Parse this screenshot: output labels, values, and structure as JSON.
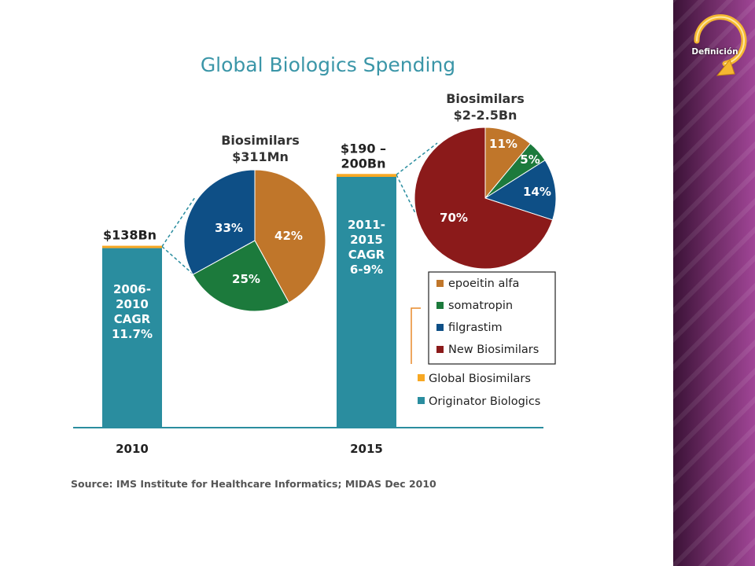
{
  "chart_data": {
    "type": "bar",
    "title": "Global Biologics Spending",
    "categories": [
      "2010",
      "2015"
    ],
    "bars": [
      {
        "category": "2010",
        "total_label": "$138Bn",
        "originator_value": 138,
        "global_biosimilars_value": 0.311,
        "inner_label": [
          "2006-",
          "2010",
          "CAGR",
          "11.7%"
        ]
      },
      {
        "category": "2015",
        "total_label_lines": [
          "$190 –",
          "200Bn"
        ],
        "originator_value": 192.75,
        "global_biosimilars_value": 2.25,
        "inner_label": [
          "2011-",
          "2015",
          "CAGR",
          "6-9%"
        ]
      }
    ],
    "ylim": [
      0,
      200
    ],
    "series": [
      {
        "name": "Global Biosimilars",
        "color": "#f7a823"
      },
      {
        "name": "Originator Biologics",
        "color": "#2a8d9f"
      }
    ],
    "pies": [
      {
        "title_lines": [
          "Biosimilars",
          "$311Mn"
        ],
        "slices": [
          {
            "name": "epoeitin alfa",
            "value": 42,
            "label": "42%",
            "color": "#c0762a"
          },
          {
            "name": "somatropin",
            "value": 25,
            "label": "25%",
            "color": "#1c7a3c"
          },
          {
            "name": "filgrastim",
            "value": 33,
            "label": "33%",
            "color": "#0e4f86"
          }
        ]
      },
      {
        "title_lines": [
          "Biosimilars",
          "$2-2.5Bn"
        ],
        "slices": [
          {
            "name": "epoeitin alfa",
            "value": 11,
            "label": "11%",
            "color": "#c0762a"
          },
          {
            "name": "somatropin",
            "value": 5,
            "label": "5%",
            "color": "#1c7a3c"
          },
          {
            "name": "filgrastim",
            "value": 14,
            "label": "14%",
            "color": "#0e4f86"
          },
          {
            "name": "New Biosimilars",
            "value": 70,
            "label": "70%",
            "color": "#8b1a1a"
          }
        ]
      }
    ],
    "pie_legend": [
      {
        "name": "epoeitin alfa",
        "color": "#c0762a"
      },
      {
        "name": "somatropin",
        "color": "#1c7a3c"
      },
      {
        "name": "filgrastim",
        "color": "#0e4f86"
      },
      {
        "name": "New Biosimilars",
        "color": "#8b1a1a"
      }
    ],
    "source": "Source: IMS Institute for Healthcare Informatics; MIDAS Dec 2010",
    "title_color": "#3b96a8"
  },
  "side_panel": {
    "button_label": "Definición",
    "button_icon": "circular-arrow-icon",
    "arrow_color": "#f5b731"
  }
}
